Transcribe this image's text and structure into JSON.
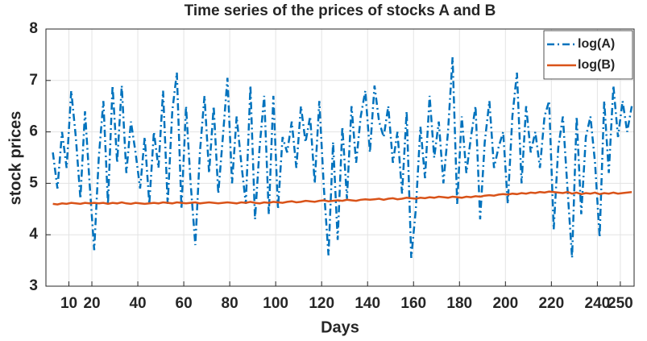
{
  "chart_data": {
    "type": "line",
    "title": "Time series of the prices of stocks A and B",
    "xlabel": "Days",
    "ylabel": "stock prices",
    "x": [
      3,
      5,
      7,
      9,
      11,
      13,
      15,
      17,
      19,
      21,
      23,
      25,
      27,
      29,
      31,
      33,
      35,
      37,
      39,
      41,
      43,
      45,
      47,
      49,
      51,
      53,
      55,
      57,
      59,
      61,
      63,
      65,
      67,
      69,
      71,
      73,
      75,
      77,
      79,
      81,
      83,
      85,
      87,
      89,
      91,
      93,
      95,
      97,
      99,
      101,
      103,
      105,
      107,
      109,
      111,
      113,
      115,
      117,
      119,
      121,
      123,
      125,
      127,
      129,
      131,
      133,
      135,
      137,
      139,
      141,
      143,
      145,
      147,
      149,
      151,
      153,
      155,
      157,
      159,
      161,
      163,
      165,
      167,
      169,
      171,
      173,
      175,
      177,
      179,
      181,
      183,
      185,
      187,
      189,
      191,
      193,
      195,
      197,
      199,
      201,
      203,
      205,
      207,
      209,
      211,
      213,
      215,
      217,
      219,
      221,
      223,
      225,
      227,
      229,
      231,
      233,
      235,
      237,
      239,
      241,
      243,
      245,
      247,
      249,
      251,
      253,
      255
    ],
    "series": [
      {
        "name": "log(A)",
        "color": "#0072bd",
        "dash": "dashdot",
        "values": [
          5.6,
          4.9,
          6.0,
          5.3,
          6.8,
          5.9,
          4.7,
          6.4,
          5.0,
          3.7,
          5.5,
          6.6,
          4.6,
          6.9,
          5.4,
          6.9,
          5.2,
          6.2,
          5.6,
          4.9,
          5.9,
          4.6,
          6.0,
          5.3,
          6.8,
          4.6,
          6.4,
          7.15,
          4.5,
          6.5,
          5.0,
          3.8,
          5.6,
          6.7,
          5.2,
          6.5,
          4.8,
          5.9,
          7.05,
          5.0,
          6.3,
          5.4,
          4.6,
          6.9,
          4.3,
          5.7,
          6.7,
          4.4,
          6.7,
          4.5,
          5.9,
          5.6,
          6.2,
          5.3,
          6.5,
          5.8,
          6.3,
          5.0,
          6.6,
          4.9,
          3.6,
          5.8,
          3.9,
          6.1,
          4.7,
          6.5,
          5.4,
          6.3,
          6.8,
          5.6,
          6.9,
          6.2,
          5.9,
          6.5,
          5.4,
          6.0,
          4.8,
          6.4,
          3.55,
          4.5,
          6.1,
          5.1,
          6.7,
          5.5,
          6.2,
          5.0,
          6.0,
          7.45,
          4.6,
          6.3,
          5.2,
          5.9,
          6.5,
          4.3,
          5.8,
          6.6,
          5.3,
          5.7,
          6.0,
          4.6,
          6.3,
          7.15,
          5.0,
          6.5,
          5.6,
          6.0,
          5.3,
          6.3,
          6.6,
          4.1,
          5.7,
          6.3,
          4.9,
          3.55,
          6.3,
          4.4,
          5.9,
          6.3,
          5.4,
          3.95,
          6.6,
          5.2,
          6.9,
          5.9,
          6.6,
          6.0,
          6.5
        ]
      },
      {
        "name": "log(B)",
        "color": "#d95319",
        "dash": "solid",
        "values": [
          4.6,
          4.59,
          4.61,
          4.6,
          4.62,
          4.61,
          4.6,
          4.62,
          4.61,
          4.62,
          4.61,
          4.62,
          4.6,
          4.62,
          4.61,
          4.63,
          4.61,
          4.6,
          4.62,
          4.61,
          4.6,
          4.61,
          4.62,
          4.61,
          4.63,
          4.62,
          4.61,
          4.63,
          4.62,
          4.61,
          4.62,
          4.63,
          4.61,
          4.62,
          4.63,
          4.62,
          4.61,
          4.62,
          4.63,
          4.62,
          4.61,
          4.63,
          4.62,
          4.64,
          4.62,
          4.61,
          4.63,
          4.62,
          4.64,
          4.63,
          4.62,
          4.64,
          4.65,
          4.63,
          4.64,
          4.66,
          4.65,
          4.64,
          4.66,
          4.67,
          4.65,
          4.66,
          4.67,
          4.66,
          4.68,
          4.67,
          4.66,
          4.68,
          4.69,
          4.68,
          4.69,
          4.7,
          4.68,
          4.7,
          4.71,
          4.69,
          4.7,
          4.72,
          4.71,
          4.7,
          4.72,
          4.71,
          4.73,
          4.72,
          4.74,
          4.73,
          4.72,
          4.74,
          4.73,
          4.72,
          4.74,
          4.73,
          4.75,
          4.74,
          4.76,
          4.77,
          4.76,
          4.78,
          4.79,
          4.78,
          4.8,
          4.79,
          4.81,
          4.8,
          4.82,
          4.81,
          4.83,
          4.82,
          4.84,
          4.83,
          4.82,
          4.81,
          4.83,
          4.8,
          4.82,
          4.79,
          4.81,
          4.8,
          4.82,
          4.79,
          4.81,
          4.8,
          4.82,
          4.8,
          4.81,
          4.82,
          4.83
        ]
      }
    ],
    "xlim": [
      0,
      256
    ],
    "xticks": [
      10,
      20,
      40,
      60,
      80,
      100,
      120,
      140,
      160,
      180,
      200,
      220,
      240,
      250
    ],
    "ylim": [
      3,
      8
    ],
    "yticks": [
      3,
      4,
      5,
      6,
      7,
      8
    ],
    "grid": true,
    "legend": "top-right"
  }
}
